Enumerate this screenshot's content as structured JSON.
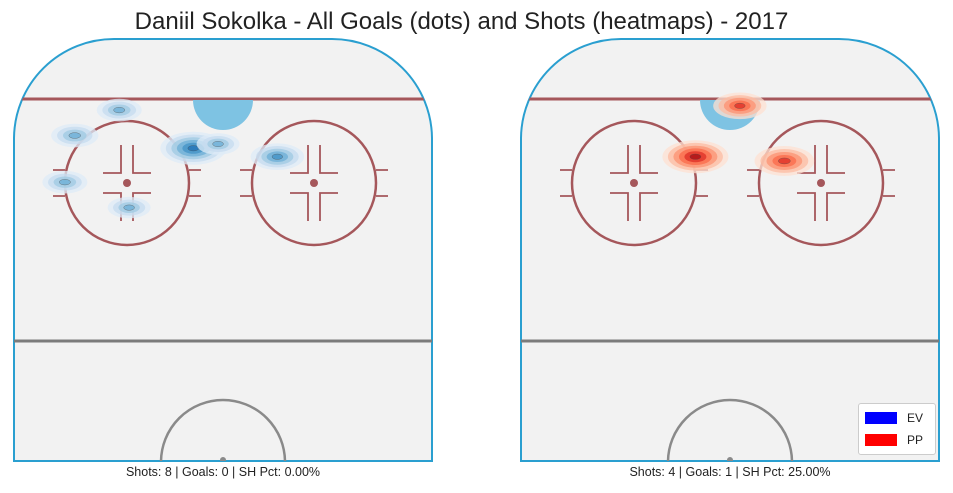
{
  "chart_data": {
    "type": "heatmap",
    "title": "Daniil Sokolka - All Goals (dots) and Shots (heatmaps) - 2017",
    "legend_placement": "bottom-right",
    "legend": [
      {
        "label": "EV",
        "color": "#0000ff"
      },
      {
        "label": "PP",
        "color": "#ff0000"
      }
    ],
    "panels": [
      {
        "situation": "EV",
        "colormap": "Blues",
        "caption": "Shots: 8 | Goals: 0 | SH Pct: 0.00%",
        "shots": 8,
        "goals": 0,
        "sh_pct": 0.0,
        "hotspots": [
          {
            "x": -30,
            "y": 77,
            "density": 0.55
          },
          {
            "x": -6,
            "y": 74,
            "density": 1.0
          },
          {
            "x": -1,
            "y": 75,
            "density": 0.45
          },
          {
            "x": -21,
            "y": 83,
            "density": 0.5
          },
          {
            "x": 11,
            "y": 72,
            "density": 0.7
          },
          {
            "x": -32,
            "y": 66,
            "density": 0.5
          },
          {
            "x": -19,
            "y": 60,
            "density": 0.45
          }
        ]
      },
      {
        "situation": "PP",
        "colormap": "Reds",
        "caption": "Shots: 4 | Goals: 1 | SH Pct: 25.00%",
        "shots": 4,
        "goals": 1,
        "sh_pct": 25.0,
        "hotspots": [
          {
            "x": 2,
            "y": 84,
            "density": 0.7
          },
          {
            "x": -7,
            "y": 72,
            "density": 1.0
          },
          {
            "x": 11,
            "y": 71,
            "density": 0.85
          }
        ]
      }
    ]
  }
}
